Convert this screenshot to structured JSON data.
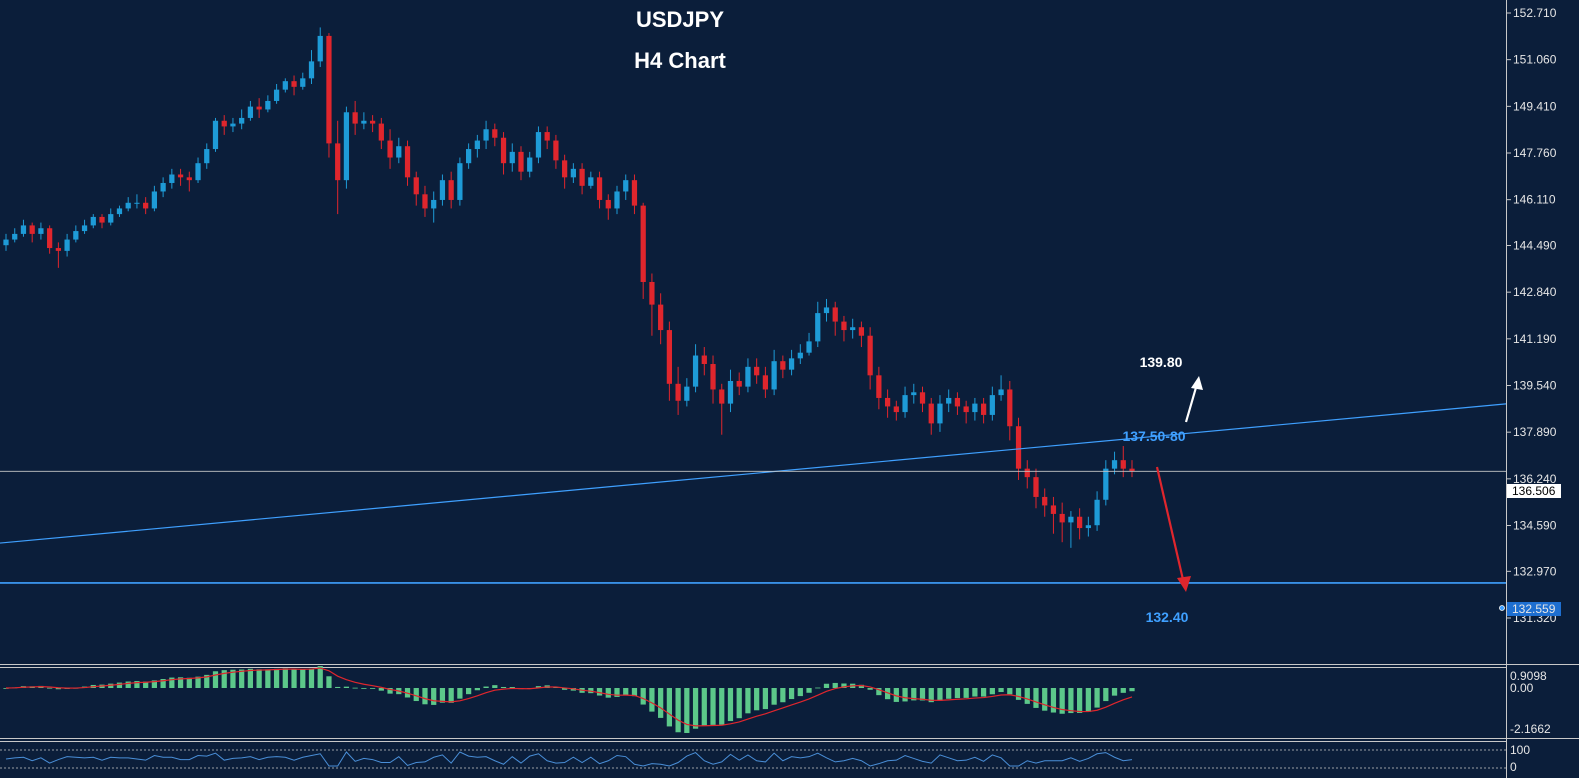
{
  "chart_data": {
    "type": "candlestick",
    "title": "USDJPY",
    "subtitle": "H4 Chart",
    "price_axis": {
      "ticks": [
        "152.710",
        "151.060",
        "149.410",
        "147.760",
        "146.110",
        "144.490",
        "142.840",
        "141.190",
        "139.540",
        "137.890",
        "136.240",
        "134.590",
        "132.970",
        "131.320"
      ],
      "range": [
        130.4,
        153.3
      ]
    },
    "current_price": "136.506",
    "support_marker": "132.559",
    "annotations": {
      "target_up": "139.80",
      "trendline_label": "137.50-80",
      "support_label": "132.40"
    },
    "trendline": {
      "start_price": 133.97,
      "end_price": 138.89
    },
    "support_price": 132.56,
    "candles": [
      [
        144.5,
        144.7,
        144.3,
        144.9
      ],
      [
        144.7,
        144.9,
        144.6,
        145.1
      ],
      [
        144.9,
        145.2,
        144.8,
        145.4
      ],
      [
        145.2,
        144.9,
        144.6,
        145.3
      ],
      [
        144.9,
        145.1,
        144.7,
        145.3
      ],
      [
        145.1,
        144.4,
        144.2,
        145.2
      ],
      [
        144.4,
        144.3,
        143.7,
        144.6
      ],
      [
        144.3,
        144.7,
        144.1,
        144.9
      ],
      [
        144.7,
        145.0,
        144.6,
        145.2
      ],
      [
        145.0,
        145.2,
        144.9,
        145.4
      ],
      [
        145.2,
        145.5,
        145.1,
        145.6
      ],
      [
        145.5,
        145.3,
        145.1,
        145.6
      ],
      [
        145.3,
        145.6,
        145.2,
        145.8
      ],
      [
        145.6,
        145.8,
        145.5,
        145.9
      ],
      [
        145.8,
        146.0,
        145.7,
        146.2
      ],
      [
        146.0,
        146.0,
        145.8,
        146.3
      ],
      [
        146.0,
        145.8,
        145.6,
        146.2
      ],
      [
        145.8,
        146.4,
        145.7,
        146.6
      ],
      [
        146.4,
        146.7,
        146.2,
        146.9
      ],
      [
        146.7,
        147.0,
        146.5,
        147.2
      ],
      [
        147.0,
        146.9,
        146.6,
        147.2
      ],
      [
        146.9,
        146.8,
        146.4,
        147.1
      ],
      [
        146.8,
        147.4,
        146.7,
        147.6
      ],
      [
        147.4,
        147.9,
        147.2,
        148.1
      ],
      [
        147.9,
        148.9,
        147.8,
        149.0
      ],
      [
        148.9,
        148.7,
        148.4,
        149.1
      ],
      [
        148.7,
        148.8,
        148.5,
        149.0
      ],
      [
        148.8,
        149.0,
        148.6,
        149.3
      ],
      [
        149.0,
        149.4,
        148.9,
        149.6
      ],
      [
        149.4,
        149.3,
        149.0,
        149.7
      ],
      [
        149.3,
        149.6,
        149.2,
        149.8
      ],
      [
        149.6,
        150.0,
        149.5,
        150.2
      ],
      [
        150.0,
        150.3,
        149.9,
        150.4
      ],
      [
        150.3,
        150.1,
        149.8,
        150.5
      ],
      [
        150.1,
        150.4,
        150.0,
        150.6
      ],
      [
        150.4,
        151.0,
        150.2,
        151.4
      ],
      [
        151.0,
        151.9,
        150.8,
        152.2
      ],
      [
        151.9,
        148.1,
        147.6,
        152.0
      ],
      [
        148.1,
        146.8,
        145.6,
        148.9
      ],
      [
        146.8,
        149.2,
        146.5,
        149.4
      ],
      [
        149.2,
        148.8,
        148.4,
        149.6
      ],
      [
        148.8,
        148.9,
        148.6,
        149.2
      ],
      [
        148.9,
        148.8,
        148.5,
        149.1
      ],
      [
        148.8,
        148.2,
        147.9,
        149.0
      ],
      [
        148.2,
        147.6,
        147.2,
        148.6
      ],
      [
        147.6,
        148.0,
        147.4,
        148.3
      ],
      [
        148.0,
        146.9,
        146.6,
        148.2
      ],
      [
        146.9,
        146.3,
        145.9,
        147.1
      ],
      [
        146.3,
        145.8,
        145.5,
        146.6
      ],
      [
        145.8,
        146.1,
        145.3,
        146.4
      ],
      [
        146.1,
        146.8,
        145.9,
        147.0
      ],
      [
        146.8,
        146.1,
        145.8,
        147.1
      ],
      [
        146.1,
        147.4,
        145.9,
        147.6
      ],
      [
        147.4,
        147.9,
        147.2,
        148.1
      ],
      [
        147.9,
        148.2,
        147.6,
        148.4
      ],
      [
        148.2,
        148.6,
        147.9,
        148.9
      ],
      [
        148.6,
        148.3,
        148.0,
        148.8
      ],
      [
        148.3,
        147.4,
        147.0,
        148.5
      ],
      [
        147.4,
        147.8,
        147.1,
        148.1
      ],
      [
        147.8,
        147.1,
        146.8,
        148.0
      ],
      [
        147.1,
        147.6,
        146.9,
        147.8
      ],
      [
        147.6,
        148.5,
        147.4,
        148.7
      ],
      [
        148.5,
        148.2,
        147.9,
        148.7
      ],
      [
        148.2,
        147.5,
        147.2,
        148.4
      ],
      [
        147.5,
        146.9,
        146.5,
        147.7
      ],
      [
        146.9,
        147.2,
        146.7,
        147.4
      ],
      [
        147.2,
        146.6,
        146.3,
        147.4
      ],
      [
        146.6,
        146.9,
        146.5,
        147.1
      ],
      [
        146.9,
        146.1,
        145.8,
        147.1
      ],
      [
        146.1,
        145.8,
        145.4,
        146.3
      ],
      [
        145.8,
        146.4,
        145.6,
        146.6
      ],
      [
        146.4,
        146.8,
        146.1,
        147.0
      ],
      [
        146.8,
        145.9,
        145.6,
        147.0
      ],
      [
        145.9,
        143.2,
        142.6,
        146.0
      ],
      [
        143.2,
        142.4,
        141.3,
        143.5
      ],
      [
        142.4,
        141.5,
        141.0,
        142.8
      ],
      [
        141.5,
        139.6,
        139.0,
        141.8
      ],
      [
        139.6,
        139.0,
        138.5,
        140.2
      ],
      [
        139.0,
        139.5,
        138.8,
        139.8
      ],
      [
        139.5,
        140.6,
        139.3,
        141.0
      ],
      [
        140.6,
        140.3,
        139.9,
        140.9
      ],
      [
        140.3,
        139.4,
        138.9,
        140.6
      ],
      [
        139.4,
        138.9,
        137.8,
        139.6
      ],
      [
        138.9,
        139.7,
        138.6,
        140.1
      ],
      [
        139.7,
        139.5,
        139.2,
        140.0
      ],
      [
        139.5,
        140.2,
        139.3,
        140.5
      ],
      [
        140.2,
        139.9,
        139.6,
        140.5
      ],
      [
        139.9,
        139.4,
        139.1,
        140.2
      ],
      [
        139.4,
        140.4,
        139.2,
        140.8
      ],
      [
        140.4,
        140.1,
        139.8,
        140.6
      ],
      [
        140.1,
        140.5,
        139.9,
        140.8
      ],
      [
        140.5,
        140.7,
        140.3,
        141.0
      ],
      [
        140.7,
        141.1,
        140.6,
        141.4
      ],
      [
        141.1,
        142.1,
        140.9,
        142.5
      ],
      [
        142.1,
        142.3,
        141.8,
        142.6
      ],
      [
        142.3,
        141.8,
        141.3,
        142.5
      ],
      [
        141.8,
        141.5,
        141.1,
        142.0
      ],
      [
        141.5,
        141.6,
        141.2,
        141.9
      ],
      [
        141.6,
        141.3,
        140.9,
        141.8
      ],
      [
        141.3,
        139.9,
        139.4,
        141.6
      ],
      [
        139.9,
        139.1,
        138.7,
        140.2
      ],
      [
        139.1,
        138.8,
        138.4,
        139.4
      ],
      [
        138.8,
        138.6,
        138.3,
        139.0
      ],
      [
        138.6,
        139.2,
        138.4,
        139.5
      ],
      [
        139.2,
        139.3,
        138.9,
        139.6
      ],
      [
        139.3,
        138.9,
        138.6,
        139.5
      ],
      [
        138.9,
        138.2,
        137.8,
        139.1
      ],
      [
        138.2,
        138.9,
        137.9,
        139.2
      ],
      [
        138.9,
        139.1,
        138.6,
        139.4
      ],
      [
        139.1,
        138.8,
        138.5,
        139.3
      ],
      [
        138.8,
        138.6,
        138.2,
        139.0
      ],
      [
        138.6,
        138.9,
        138.3,
        139.1
      ],
      [
        138.9,
        138.5,
        138.2,
        139.1
      ],
      [
        138.5,
        139.2,
        138.3,
        139.5
      ],
      [
        139.2,
        139.4,
        139.0,
        139.9
      ],
      [
        139.4,
        138.1,
        137.6,
        139.7
      ],
      [
        138.1,
        136.6,
        136.2,
        138.4
      ],
      [
        136.6,
        136.3,
        135.9,
        136.9
      ],
      [
        136.3,
        135.6,
        135.2,
        136.6
      ],
      [
        135.6,
        135.3,
        134.9,
        135.9
      ],
      [
        135.3,
        135.0,
        134.3,
        135.6
      ],
      [
        135.0,
        134.7,
        134.0,
        135.4
      ],
      [
        134.7,
        134.9,
        133.8,
        135.1
      ],
      [
        134.9,
        134.5,
        134.1,
        135.2
      ],
      [
        134.5,
        134.6,
        134.2,
        134.9
      ],
      [
        134.6,
        135.5,
        134.4,
        135.8
      ],
      [
        135.5,
        136.6,
        135.3,
        136.9
      ],
      [
        136.6,
        136.9,
        136.4,
        137.2
      ],
      [
        136.9,
        136.6,
        136.3,
        137.4
      ],
      [
        136.6,
        136.5,
        136.3,
        136.9
      ]
    ],
    "sub_axis": {
      "macd_ticks": [
        "0.9098",
        "0.00",
        "-2.1662"
      ],
      "osc_ticks": [
        "100",
        "0"
      ]
    },
    "colors": {
      "background": "#0b1e3a",
      "bull_candle": "#1e9bd7",
      "bear_candle": "#e0262d",
      "trendline": "#3fa0ff",
      "support_line": "#3fa0ff",
      "current_line": "#c8c8c8",
      "down_arrow": "#e0262d",
      "up_arrow": "#ffffff",
      "histogram": "#5cc88a",
      "signal": "#e0262d",
      "oscillator": "#4a8fd8"
    }
  }
}
